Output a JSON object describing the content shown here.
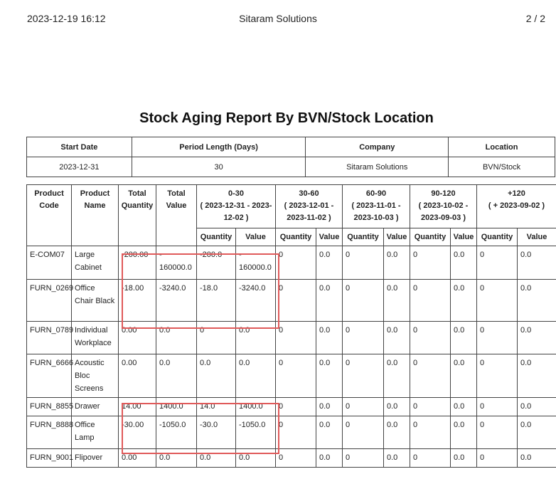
{
  "page_header": {
    "datetime": "2023-12-19 16:12",
    "company_name": "Sitaram Solutions",
    "page_number": "2  /  2"
  },
  "report": {
    "title": "Stock Aging Report By BVN/Stock Location"
  },
  "summary": {
    "headers": [
      "Start Date",
      "Period Length (Days)",
      "Company",
      "Location"
    ],
    "values": [
      "2023-12-31",
      "30",
      "Sitaram Solutions",
      "BVN/Stock"
    ]
  },
  "columns": {
    "product_code": "Product Code",
    "product_name": "Product Name",
    "total_quantity": "Total Quantity",
    "total_value": "Total Value",
    "periods": [
      {
        "label": "0-30",
        "range": "( 2023-12-31 - 2023-12-02 )"
      },
      {
        "label": "30-60",
        "range": "( 2023-12-01 - 2023-11-02 )"
      },
      {
        "label": "60-90",
        "range": "( 2023-11-01 - 2023-10-03 )"
      },
      {
        "label": "90-120",
        "range": "( 2023-10-02 - 2023-09-03 )"
      },
      {
        "label": "+120",
        "range": "( + 2023-09-02 )"
      }
    ],
    "quantity": "Quantity",
    "value": "Value"
  },
  "rows": [
    {
      "code": "E-COM07",
      "name": "Large Cabinet",
      "total_qty": "-200.00",
      "total_value": "-\n160000.0",
      "p": [
        [
          "-200.0",
          "-\n160000.0"
        ],
        [
          "0",
          "0.0"
        ],
        [
          "0",
          "0.0"
        ],
        [
          "0",
          "0.0"
        ],
        [
          "0",
          "0.0"
        ]
      ]
    },
    {
      "code": "FURN_0269",
      "name": "Office Chair Black",
      "total_qty": "-18.00",
      "total_value": "-3240.0",
      "p": [
        [
          "-18.0",
          "-3240.0"
        ],
        [
          "0",
          "0.0"
        ],
        [
          "0",
          "0.0"
        ],
        [
          "0",
          "0.0"
        ],
        [
          "0",
          "0.0"
        ]
      ]
    },
    {
      "code": "FURN_0789",
      "name": "Individual Workplace",
      "total_qty": "0.00",
      "total_value": "0.0",
      "p": [
        [
          "0",
          "0.0"
        ],
        [
          "0",
          "0.0"
        ],
        [
          "0",
          "0.0"
        ],
        [
          "0",
          "0.0"
        ],
        [
          "0",
          "0.0"
        ]
      ]
    },
    {
      "code": "FURN_6666",
      "name": "Acoustic Bloc Screens",
      "total_qty": "0.00",
      "total_value": "0.0",
      "p": [
        [
          "0.0",
          "0.0"
        ],
        [
          "0",
          "0.0"
        ],
        [
          "0",
          "0.0"
        ],
        [
          "0",
          "0.0"
        ],
        [
          "0",
          "0.0"
        ]
      ]
    },
    {
      "code": "FURN_8855",
      "name": "Drawer",
      "total_qty": "14.00",
      "total_value": "1400.0",
      "p": [
        [
          "14.0",
          "1400.0"
        ],
        [
          "0",
          "0.0"
        ],
        [
          "0",
          "0.0"
        ],
        [
          "0",
          "0.0"
        ],
        [
          "0",
          "0.0"
        ]
      ]
    },
    {
      "code": "FURN_8888",
      "name": "Office Lamp",
      "total_qty": "-30.00",
      "total_value": "-1050.0",
      "p": [
        [
          "-30.0",
          "-1050.0"
        ],
        [
          "0",
          "0.0"
        ],
        [
          "0",
          "0.0"
        ],
        [
          "0",
          "0.0"
        ],
        [
          "0",
          "0.0"
        ]
      ]
    },
    {
      "code": "FURN_9001",
      "name": "Flipover",
      "total_qty": "0.00",
      "total_value": "0.0",
      "p": [
        [
          "0.0",
          "0.0"
        ],
        [
          "0",
          "0.0"
        ],
        [
          "0",
          "0.0"
        ],
        [
          "0",
          "0.0"
        ],
        [
          "0",
          "0.0"
        ]
      ]
    }
  ],
  "colors": {
    "highlight_border": "#e05a5a",
    "table_border": "#444444"
  }
}
